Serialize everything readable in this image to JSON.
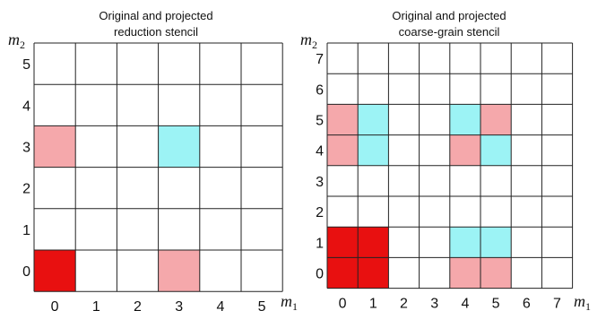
{
  "colors": {
    "red": "#e81010",
    "pink": "#f5a8ab",
    "cyan": "#9cf3f5",
    "grid": "#222222"
  },
  "panels": [
    {
      "id": "reduction",
      "title_line1": "Original and projected",
      "title_line2": "reduction stencil",
      "y_axis_label": "m",
      "y_axis_sub": "2",
      "x_axis_label": "m",
      "x_axis_sub": "1",
      "size": 6,
      "x_ticks": [
        "0",
        "1",
        "2",
        "3",
        "4",
        "5"
      ],
      "y_ticks": [
        "0",
        "1",
        "2",
        "3",
        "4",
        "5"
      ],
      "cells": [
        {
          "x": 0,
          "y": 0,
          "color": "red"
        },
        {
          "x": 3,
          "y": 0,
          "color": "pink"
        },
        {
          "x": 0,
          "y": 3,
          "color": "pink"
        },
        {
          "x": 3,
          "y": 3,
          "color": "cyan"
        }
      ]
    },
    {
      "id": "coarse-grain",
      "title_line1": "Original and projected",
      "title_line2": "coarse-grain stencil",
      "y_axis_label": "m",
      "y_axis_sub": "2",
      "x_axis_label": "m",
      "x_axis_sub": "1",
      "size": 8,
      "x_ticks": [
        "0",
        "1",
        "2",
        "3",
        "4",
        "5",
        "6",
        "7"
      ],
      "y_ticks": [
        "0",
        "1",
        "2",
        "3",
        "4",
        "5",
        "6",
        "7"
      ],
      "cells": [
        {
          "x": 0,
          "y": 0,
          "color": "red"
        },
        {
          "x": 1,
          "y": 0,
          "color": "red"
        },
        {
          "x": 0,
          "y": 1,
          "color": "red"
        },
        {
          "x": 1,
          "y": 1,
          "color": "red"
        },
        {
          "x": 4,
          "y": 0,
          "color": "pink"
        },
        {
          "x": 5,
          "y": 0,
          "color": "pink"
        },
        {
          "x": 4,
          "y": 1,
          "color": "cyan"
        },
        {
          "x": 5,
          "y": 1,
          "color": "cyan"
        },
        {
          "x": 0,
          "y": 4,
          "color": "pink"
        },
        {
          "x": 0,
          "y": 5,
          "color": "pink"
        },
        {
          "x": 1,
          "y": 4,
          "color": "cyan"
        },
        {
          "x": 1,
          "y": 5,
          "color": "cyan"
        },
        {
          "x": 4,
          "y": 4,
          "color": "pink"
        },
        {
          "x": 5,
          "y": 5,
          "color": "pink"
        },
        {
          "x": 4,
          "y": 5,
          "color": "cyan"
        },
        {
          "x": 5,
          "y": 4,
          "color": "cyan"
        }
      ]
    }
  ]
}
